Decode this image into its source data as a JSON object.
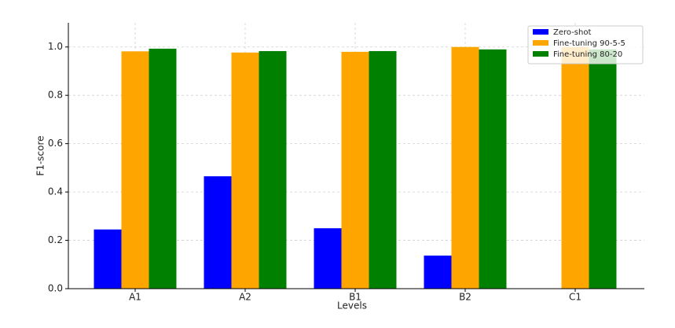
{
  "chart_data": {
    "type": "bar",
    "x_label": "Levels",
    "y_label": "F1-score",
    "categories": [
      "A1",
      "A2",
      "B1",
      "B2",
      "C1"
    ],
    "series": [
      {
        "name": "Zero-shot",
        "color": "#0000ff",
        "values": [
          0.245,
          0.465,
          0.25,
          0.137,
          0
        ]
      },
      {
        "name": "Fine-tuning 90-5-5",
        "color": "#ffa500",
        "values": [
          0.982,
          0.977,
          0.98,
          1.0,
          1.0
        ]
      },
      {
        "name": "Fine-tuning 80-20",
        "color": "#008000",
        "values": [
          0.993,
          0.983,
          0.983,
          0.99,
          0.99
        ]
      }
    ],
    "ylim": [
      0,
      1.1
    ],
    "yticks": [
      {
        "value": 0,
        "label": "0.0"
      },
      {
        "value": 0.2,
        "label": "0.2"
      },
      {
        "value": 0.4,
        "label": "0.4"
      },
      {
        "value": 0.6,
        "label": "0.6"
      },
      {
        "value": 0.8,
        "label": "0.8"
      },
      {
        "value": 1,
        "label": "1.0"
      }
    ],
    "grid": true,
    "legend": "upper right"
  }
}
